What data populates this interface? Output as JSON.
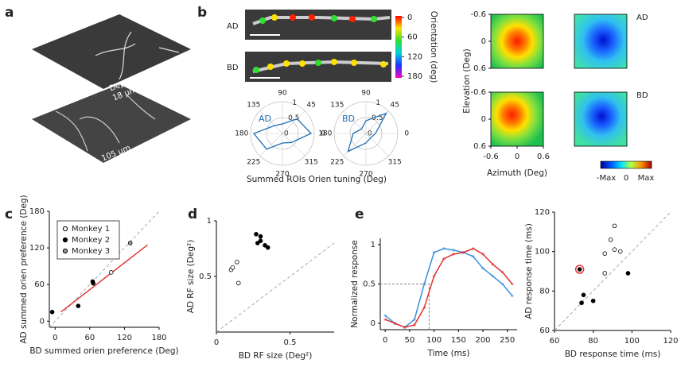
{
  "panel_labels": [
    "a",
    "b",
    "c",
    "d",
    "e"
  ],
  "panel_a": {
    "upper_label": "Depth",
    "upper_depth": "18 μm",
    "lower_depth": "105 μm"
  },
  "panel_b": {
    "rows": [
      "AD",
      "BD"
    ],
    "colorbar": {
      "title": "Orientation (deg)",
      "lim": [
        0,
        180
      ],
      "ticks": [
        0,
        60,
        120,
        180
      ]
    },
    "polar_xlabel": "Summed ROIs Orien tuning (Deg)"
  },
  "chart_data": [
    {
      "type": "polar",
      "label": "AD",
      "color": "#1f6fb4",
      "angles": [
        0,
        45,
        90,
        135,
        180,
        225,
        270,
        315
      ],
      "rticks": [
        0,
        0.5,
        1
      ],
      "theta": [
        0,
        45,
        90,
        135,
        180,
        225,
        270,
        315
      ],
      "r": [
        0.9,
        0.65,
        0.3,
        0.35,
        0.9,
        0.7,
        0.3,
        0.4
      ]
    },
    {
      "type": "polar",
      "label": "BD",
      "color": "#1f6fb4",
      "angles": [
        0,
        45,
        90,
        135,
        180,
        225,
        270,
        315
      ],
      "rticks": [
        0,
        0.5,
        1
      ],
      "theta": [
        0,
        45,
        90,
        135,
        180,
        225,
        270,
        315
      ],
      "r": [
        0.3,
        0.9,
        0.4,
        0.2,
        0.4,
        0.8,
        0.3,
        0.2
      ]
    },
    {
      "type": "heatmap",
      "rows": [
        "AD",
        "BD"
      ],
      "xlabel": "Azimuth (Deg)",
      "ylabel": "Elevation (Deg)",
      "xticks": [
        -0.6,
        0,
        0.6
      ],
      "yticks": [
        -0.6,
        0,
        0.6
      ],
      "colorbar_labels": [
        "-Max",
        "0",
        "Max"
      ]
    },
    {
      "type": "scatter",
      "xlabel": "BD summed orien preference (Deg)",
      "ylabel": "AD summed orien preference (Deg)",
      "xlim": [
        -10,
        180
      ],
      "ylim": [
        -10,
        180
      ],
      "xticks": [
        0,
        60,
        120,
        180
      ],
      "yticks": [
        0,
        60,
        120,
        180
      ],
      "diagonal": true,
      "legend": "upper left",
      "series": [
        {
          "name": "Monkey 1",
          "color": "#000000",
          "fill": "#ffffff",
          "x": [
            97
          ],
          "y": [
            80
          ]
        },
        {
          "name": "Monkey 2",
          "color": "#000000",
          "fill": "#000000",
          "x": [
            65,
            66,
            40,
            -5
          ],
          "y": [
            65,
            62,
            25,
            15
          ]
        },
        {
          "name": "Monkey 3",
          "color": "#000000",
          "fill": "#999999",
          "x": [
            130
          ],
          "y": [
            128
          ]
        }
      ],
      "fit_line": {
        "color": "#e02020",
        "x": [
          10,
          160
        ],
        "y": [
          15,
          125
        ]
      }
    },
    {
      "type": "scatter",
      "xlabel": "BD RF size (Deg²)",
      "ylabel": "AD RF size (Deg²)",
      "xlim": [
        0,
        0.8
      ],
      "ylim": [
        0,
        1
      ],
      "xticks": [
        0,
        0.5
      ],
      "yticks": [
        0.5,
        1
      ],
      "diagonal": true,
      "series": [
        {
          "color": "#000000",
          "fill": "#ffffff",
          "x": [
            0.1,
            0.11,
            0.14,
            0.15
          ],
          "y": [
            0.56,
            0.58,
            0.63,
            0.44
          ]
        },
        {
          "color": "#000000",
          "fill": "#000000",
          "x": [
            0.27,
            0.3,
            0.3,
            0.28,
            0.35,
            0.33
          ],
          "y": [
            0.88,
            0.86,
            0.82,
            0.8,
            0.76,
            0.78
          ]
        }
      ]
    },
    {
      "type": "line",
      "xlabel": "Time (ms)",
      "ylabel": "Normalized response",
      "xlim": [
        -10,
        270
      ],
      "ylim": [
        -0.08,
        1.08
      ],
      "xticks": [
        0,
        50,
        100,
        150,
        200,
        250
      ],
      "yticks": [
        0,
        0.5,
        1
      ],
      "x": [
        0,
        20,
        40,
        60,
        80,
        100,
        120,
        140,
        160,
        180,
        200,
        220,
        240,
        260
      ],
      "guide": {
        "x": 90,
        "y": 0.5
      },
      "series": [
        {
          "color": "#3b8fe0",
          "values": [
            0.1,
            0.0,
            -0.05,
            0.05,
            0.5,
            0.9,
            0.95,
            0.93,
            0.9,
            0.85,
            0.7,
            0.6,
            0.5,
            0.35
          ]
        },
        {
          "color": "#e03030",
          "values": [
            0.05,
            0.0,
            -0.05,
            -0.02,
            0.2,
            0.6,
            0.82,
            0.88,
            0.9,
            0.95,
            0.88,
            0.75,
            0.65,
            0.5
          ]
        }
      ]
    },
    {
      "type": "scatter",
      "xlabel": "BD response time (ms)",
      "ylabel": "AD response time (ms)",
      "xlim": [
        60,
        120
      ],
      "ylim": [
        60,
        120
      ],
      "xticks": [
        60,
        80,
        100,
        120
      ],
      "yticks": [
        60,
        80,
        100,
        120
      ],
      "diagonal": true,
      "series": [
        {
          "color": "#000000",
          "fill": "#ffffff",
          "x": [
            91,
            89,
            91,
            86,
            94,
            86
          ],
          "y": [
            113,
            106,
            101,
            99,
            100,
            89
          ]
        },
        {
          "color": "#000000",
          "fill": "#000000",
          "x": [
            73,
            75,
            74,
            80,
            98
          ],
          "y": [
            91,
            78,
            74,
            75,
            89
          ]
        }
      ],
      "highlight": {
        "color": "#e03030",
        "x": 73,
        "y": 91
      }
    }
  ]
}
